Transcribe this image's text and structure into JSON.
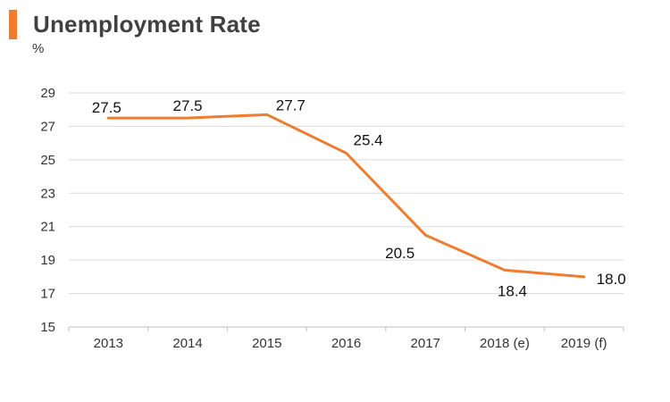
{
  "header": {
    "title": "Unemployment Rate",
    "unit": "%"
  },
  "colors": {
    "accent": "#ED7D31",
    "line": "#ED7D31",
    "grid": "#D9D9D9",
    "axis": "#BFBFBF",
    "text": "#333333"
  },
  "chart_data": {
    "type": "line",
    "title": "Unemployment Rate",
    "ylabel": "%",
    "xlabel": "",
    "categories": [
      "2013",
      "2014",
      "2015",
      "2016",
      "2017",
      "2018 (e)",
      "2019 (f)"
    ],
    "series": [
      {
        "values": [
          27.5,
          27.5,
          27.7,
          25.4,
          20.5,
          18.4,
          18.0
        ],
        "labels": [
          "27.5",
          "27.5",
          "27.7",
          "25.4",
          "20.5",
          "18.4",
          "18.0"
        ]
      }
    ],
    "ylim": [
      15,
      29
    ],
    "yticks": [
      "15",
      "17",
      "19",
      "21",
      "23",
      "25",
      "27",
      "29"
    ],
    "grid": true,
    "legend": "none"
  }
}
